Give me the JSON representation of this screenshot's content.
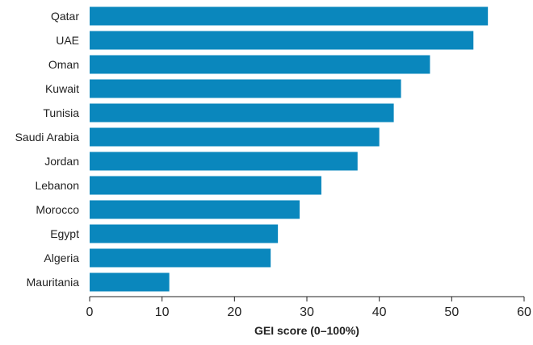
{
  "chart_data": {
    "type": "bar",
    "orientation": "horizontal",
    "title": "",
    "xlabel": "GEI score (0–100%)",
    "ylabel": "",
    "xlim": [
      0,
      60
    ],
    "xticks": [
      0,
      10,
      20,
      30,
      40,
      50,
      60
    ],
    "grid": false,
    "legend": "none",
    "bar_color": "#0a87bd",
    "categories": [
      "Qatar",
      "UAE",
      "Oman",
      "Kuwait",
      "Tunisia",
      "Saudi Arabia",
      "Jordan",
      "Lebanon",
      "Morocco",
      "Egypt",
      "Algeria",
      "Mauritania"
    ],
    "values": [
      55,
      53,
      47,
      43,
      42,
      40,
      37,
      32,
      29,
      26,
      25,
      11
    ]
  }
}
